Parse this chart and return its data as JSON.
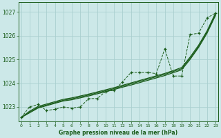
{
  "title": "Graphe pression niveau de la mer (hPa)",
  "bg_color": "#cce8e8",
  "grid_color": "#aacfcf",
  "line_color": "#1a5c1a",
  "ylim": [
    1022.4,
    1027.4
  ],
  "xlim": [
    -0.3,
    23.3
  ],
  "yticks": [
    1023,
    1024,
    1025,
    1026,
    1027
  ],
  "xticks": [
    0,
    1,
    2,
    3,
    4,
    5,
    6,
    7,
    8,
    9,
    10,
    11,
    12,
    13,
    14,
    15,
    16,
    17,
    18,
    19,
    20,
    21,
    22,
    23
  ],
  "hours": [
    0,
    1,
    2,
    3,
    4,
    5,
    6,
    7,
    8,
    9,
    10,
    11,
    12,
    13,
    14,
    15,
    16,
    17,
    18,
    19,
    20,
    21,
    22,
    23
  ],
  "data_line": [
    1022.55,
    1023.0,
    1023.1,
    1022.85,
    1022.9,
    1023.0,
    1022.95,
    1023.0,
    1023.35,
    1023.35,
    1023.65,
    1023.7,
    1024.05,
    1024.45,
    1024.45,
    1024.45,
    1024.4,
    1025.45,
    1024.3,
    1024.3,
    1026.05,
    1026.1,
    1026.75,
    1026.95
  ],
  "smooth_line1": [
    1022.55,
    1022.75,
    1022.95,
    1023.05,
    1023.15,
    1023.25,
    1023.3,
    1023.38,
    1023.46,
    1023.55,
    1023.64,
    1023.73,
    1023.83,
    1023.92,
    1024.02,
    1024.12,
    1024.22,
    1024.32,
    1024.44,
    1024.56,
    1025.0,
    1025.5,
    1026.1,
    1026.85
  ],
  "smooth_line2": [
    1022.55,
    1022.78,
    1022.98,
    1023.08,
    1023.18,
    1023.28,
    1023.34,
    1023.42,
    1023.5,
    1023.59,
    1023.68,
    1023.77,
    1023.87,
    1023.97,
    1024.07,
    1024.17,
    1024.27,
    1024.37,
    1024.49,
    1024.61,
    1025.05,
    1025.55,
    1026.15,
    1026.9
  ],
  "smooth_line3": [
    1022.55,
    1022.82,
    1023.02,
    1023.12,
    1023.22,
    1023.32,
    1023.38,
    1023.46,
    1023.54,
    1023.63,
    1023.72,
    1023.81,
    1023.91,
    1024.01,
    1024.11,
    1024.21,
    1024.31,
    1024.41,
    1024.53,
    1024.66,
    1025.1,
    1025.6,
    1026.2,
    1026.95
  ]
}
